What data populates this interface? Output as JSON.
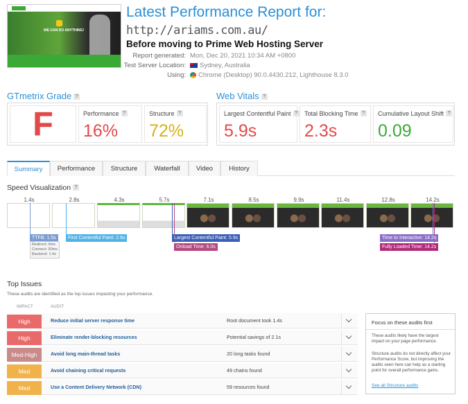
{
  "header": {
    "title": "Latest Performance Report for:",
    "url": "http://ariams.com.au/",
    "subtitle": "Before moving to Prime Web Hosting Server",
    "thumbnail_text": "WE CAN DO ANYTHING!",
    "meta": {
      "report_generated_label": "Report generated:",
      "report_generated_value": "Mon, Dec 20, 2021 10:34 AM +0800",
      "location_label": "Test Server Location:",
      "location_value": "Sydney, Australia",
      "using_label": "Using:",
      "using_value": "Chrome (Desktop) 90.0.4430.212, Lighthouse 8.3.0"
    }
  },
  "grade": {
    "title": "GTmetrix Grade",
    "help": "?",
    "letter": "F",
    "performance_label": "Performance",
    "performance_value": "16%",
    "structure_label": "Structure",
    "structure_value": "72%",
    "colors": {
      "letter": "#e24a4a",
      "performance": "#e24a4a",
      "structure": "#d4b21a"
    }
  },
  "vitals": {
    "title": "Web Vitals",
    "help": "?",
    "lcp_label": "Largest Contentful Paint",
    "lcp_value": "5.9s",
    "tbt_label": "Total Blocking Time",
    "tbt_value": "2.3s",
    "cls_label": "Cumulative Layout Shift",
    "cls_value": "0.09",
    "colors": {
      "lcp": "#e24a4a",
      "tbt": "#e24a4a",
      "cls": "#3aa935"
    }
  },
  "tabs": [
    "Summary",
    "Performance",
    "Structure",
    "Waterfall",
    "Video",
    "History"
  ],
  "speed": {
    "title": "Speed Visualization",
    "help": "?",
    "ticks": [
      "1.4s",
      "2.8s",
      "4.3s",
      "5.7s",
      "7.1s",
      "8.5s",
      "9.9s",
      "11.4s",
      "12.8s",
      "14.2s"
    ],
    "markers": {
      "ttfb": "TTFB: 1.5s",
      "ttfb_redirect": "Redirect: 0ms",
      "ttfb_connect": "Connect: 50ms",
      "ttfb_backend": "Backend: 1.4s",
      "fcp": "First Contentful Paint: 2.6s",
      "lcp": "Largest Contentful Paint: 5.9s",
      "onload": "Onload Time: 6.0s",
      "tti": "Time to Interactive: 14.2s",
      "fully": "Fully Loaded Time: 14.2s"
    },
    "colors": {
      "ttfb": "#7a9ccf",
      "fcp": "#4fb3e8",
      "lcp": "#3b5fb6",
      "onload": "#b4487e",
      "tti": "#8a6fc9",
      "fully": "#b1297a"
    }
  },
  "issues": {
    "title": "Top Issues",
    "description": "These audits are identified as the top issues impacting your performance.",
    "col_impact": "IMPACT",
    "col_audit": "AUDIT",
    "rows": [
      {
        "impact": "High",
        "audit": "Reduce initial server response time",
        "result": "Root document took 1.4s",
        "color": "#e96a6a"
      },
      {
        "impact": "High",
        "audit": "Eliminate render-blocking resources",
        "result": "Potential savings of 2.1s",
        "color": "#e96a6a"
      },
      {
        "impact": "Med-High",
        "audit": "Avoid long main-thread tasks",
        "result": "20 long tasks found",
        "color": "#c98a8a"
      },
      {
        "impact": "Med",
        "audit": "Avoid chaining critical requests",
        "result": "49 chains found",
        "color": "#f0b24a"
      },
      {
        "impact": "Med",
        "audit": "Use a Content Delivery Network (CDN)",
        "result": "59 resources found",
        "color": "#f0b24a"
      }
    ]
  },
  "focus": {
    "title": "Focus on these audits first",
    "p1": "These audits likely have the largest impact on your page performance.",
    "p2": "Structure audits do not directly affect your Performance Score, but improving the audits seen here can help as a starting point for overall performance gains.",
    "link": "See all Structure audits"
  }
}
